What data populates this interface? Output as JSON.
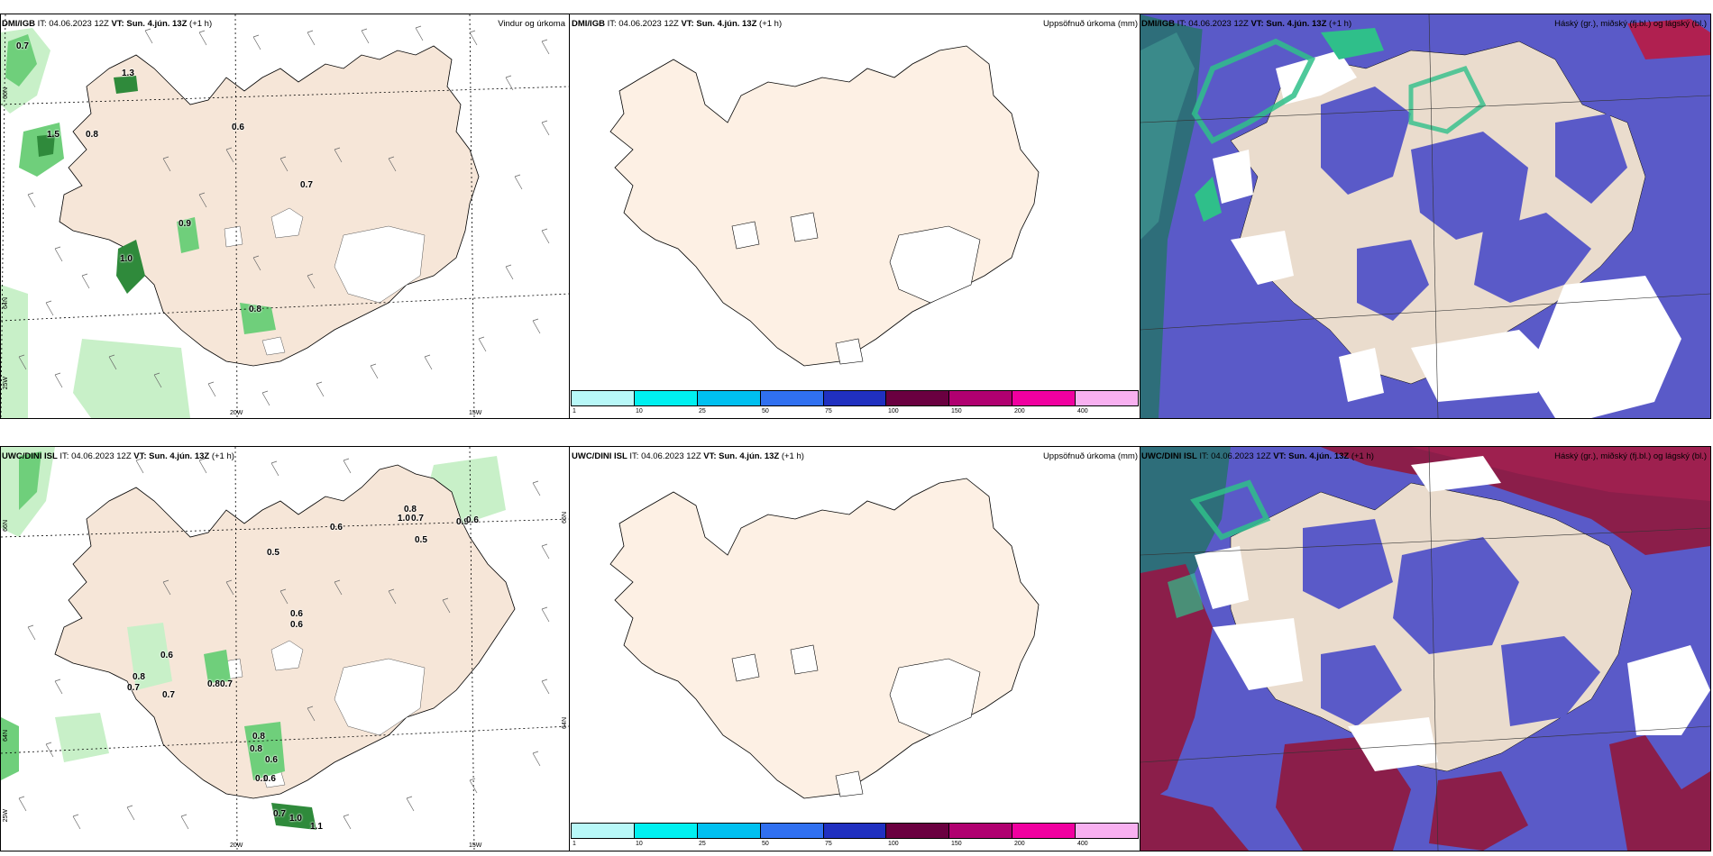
{
  "colors": {
    "land": "#f6e6d8",
    "land_beige": "#eadccd",
    "precip_light": "#c8f0c8",
    "precip_mid": "#6fcf7b",
    "precip_dark": "#2f8a3b",
    "cloud_high": "#3a7f7e",
    "cloud_mid": "#5a5ac8",
    "cloud_low": "#8b1e4a",
    "cloud_teal": "#2fbf8a"
  },
  "colorbar": {
    "colors": [
      "#b8f8f8",
      "#00f0f0",
      "#00c0f0",
      "#3070f0",
      "#2030c0",
      "#6a0040",
      "#b00070",
      "#f000a0",
      "#f8b0f0"
    ],
    "labels": [
      "1",
      "10",
      "25",
      "50",
      "75",
      "100",
      "150",
      "200",
      "400"
    ]
  },
  "rows": [
    {
      "model": "DMI/IGB",
      "it_label": "IT:",
      "it": "04.06.2023 12Z",
      "vt_label": "VT:",
      "vt": "Sun. 4.jún. 13Z",
      "step": "(+1 h)",
      "panels": [
        {
          "title": "Vindur og úrkoma"
        },
        {
          "title": "Uppsöfnuð úrkoma (mm)"
        },
        {
          "title": "Háský (gr.), miðský (fj.bl.) og lágský (bl.)"
        }
      ],
      "axis_labels": {
        "lat66": "66N",
        "lat64": "64N",
        "lon20": "20W",
        "lon15": "15W",
        "lon25": "25W"
      },
      "precip_values": [
        {
          "v": "0.7",
          "x": 18,
          "y": 46
        },
        {
          "v": "1.3",
          "x": 135,
          "y": 76
        },
        {
          "v": "1.5",
          "x": 52,
          "y": 144
        },
        {
          "v": "0.8",
          "x": 95,
          "y": 144
        },
        {
          "v": "0.6",
          "x": 257,
          "y": 136
        },
        {
          "v": "0.7",
          "x": 333,
          "y": 200
        },
        {
          "v": "0.9",
          "x": 198,
          "y": 243
        },
        {
          "v": "1.0",
          "x": 133,
          "y": 282
        },
        {
          "v": "0.8",
          "x": 276,
          "y": 338
        }
      ]
    },
    {
      "model": "UWC/DINI ISL",
      "it_label": "IT:",
      "it": "04.06.2023 12Z",
      "vt_label": "VT:",
      "vt": "Sun. 4.jún. 13Z",
      "step": "(+1 h)",
      "panels": [
        {
          "title": "Vindur og úrkoma"
        },
        {
          "title": "Uppsöfnuð úrkoma (mm)"
        },
        {
          "title": "Háský (gr.), miðský (fj.bl.) og lágský (bl.)"
        }
      ],
      "axis_labels": {
        "lat66": "66N",
        "lat64": "64N",
        "lon20": "20W",
        "lon15": "15W",
        "lon25": "25W"
      },
      "precip_values": [
        {
          "v": "0.8",
          "x": 448,
          "y": 560
        },
        {
          "v": "1.0",
          "x": 441,
          "y": 570
        },
        {
          "v": "0.7",
          "x": 456,
          "y": 570
        },
        {
          "v": "0.6",
          "x": 366,
          "y": 580
        },
        {
          "v": "0.5",
          "x": 460,
          "y": 594
        },
        {
          "v": "0.9",
          "x": 506,
          "y": 574
        },
        {
          "v": "0.6",
          "x": 517,
          "y": 572
        },
        {
          "v": "0.5",
          "x": 296,
          "y": 608
        },
        {
          "v": "0.6",
          "x": 322,
          "y": 676
        },
        {
          "v": "0.6",
          "x": 322,
          "y": 688
        },
        {
          "v": "0.6",
          "x": 178,
          "y": 722
        },
        {
          "v": "0.8",
          "x": 147,
          "y": 746
        },
        {
          "v": "0.7",
          "x": 141,
          "y": 758
        },
        {
          "v": "0.7",
          "x": 180,
          "y": 766
        },
        {
          "v": "0.8",
          "x": 230,
          "y": 754
        },
        {
          "v": "0.7",
          "x": 244,
          "y": 754
        },
        {
          "v": "0.8",
          "x": 280,
          "y": 812
        },
        {
          "v": "0.8",
          "x": 277,
          "y": 826
        },
        {
          "v": "0.6",
          "x": 294,
          "y": 838
        },
        {
          "v": "0.1",
          "x": 283,
          "y": 859
        },
        {
          "v": "0.6",
          "x": 292,
          "y": 859
        },
        {
          "v": "0.7",
          "x": 303,
          "y": 898
        },
        {
          "v": "1.0",
          "x": 321,
          "y": 903
        },
        {
          "v": "1.1",
          "x": 344,
          "y": 912
        }
      ]
    }
  ]
}
